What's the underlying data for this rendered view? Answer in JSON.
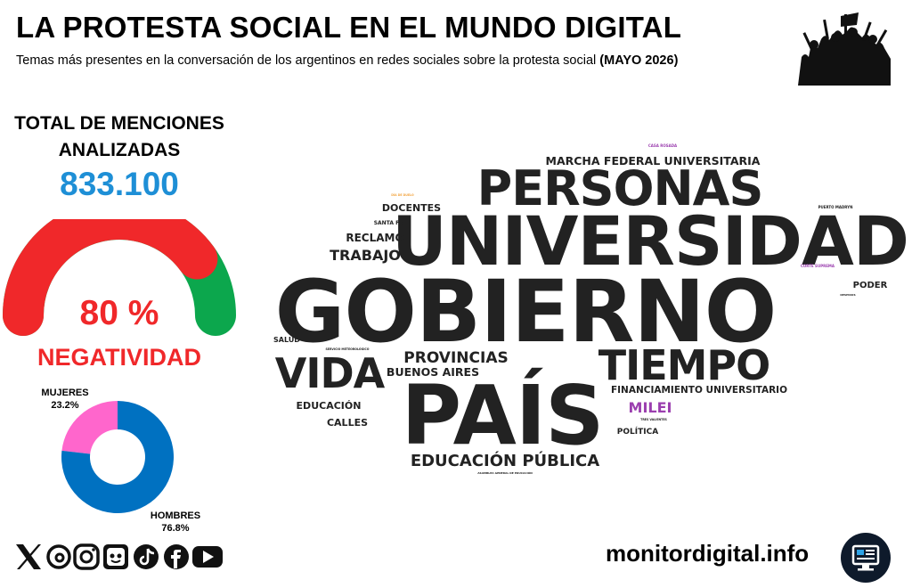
{
  "header": {
    "title": "LA PROTESTA SOCIAL EN EL MUNDO DIGITAL",
    "subtitle": "Temas más presentes en la conversación de los argentinos en redes sociales sobre la protesta social",
    "subtitle_bold": "(MAYO 2026)"
  },
  "summary": {
    "total_label": "TOTAL DE MENCIONES ANALIZADAS",
    "total_value": "833.100",
    "negativity_text": "80 %",
    "negativity_label": "NEGATIVIDAD"
  },
  "footer": {
    "site": "monitordigital.info",
    "social_icons": [
      "x-icon",
      "threads-icon",
      "instagram-icon",
      "ai-bot-icon",
      "tiktok-icon",
      "facebook-icon",
      "youtube-icon"
    ]
  },
  "colors": {
    "negative": "#F0282A",
    "positive": "#0CA74D",
    "total": "#1E8FD6",
    "women": "#FF66CC",
    "men": "#0071C1",
    "purple": "#9B3FAF",
    "dark": "#222222"
  },
  "chart_data": [
    {
      "type": "gauge",
      "title": "",
      "value": 80,
      "max": 100,
      "unit": "%",
      "label": "NEGATIVIDAD"
    },
    {
      "type": "pie",
      "donut": true,
      "title": "",
      "series": [
        {
          "name": "MUJERES",
          "value": 23.2,
          "label": "23.2%"
        },
        {
          "name": "HOMBRES",
          "value": 76.8,
          "label": "76.8%"
        }
      ]
    },
    {
      "type": "wordcloud",
      "title": "",
      "words": [
        {
          "text": "GOBIERNO",
          "weight": 100
        },
        {
          "text": "UNIVERSIDAD",
          "weight": 78
        },
        {
          "text": "PAÍS",
          "weight": 76
        },
        {
          "text": "PERSONAS",
          "weight": 55
        },
        {
          "text": "TIEMPO",
          "weight": 48
        },
        {
          "text": "VIDA",
          "weight": 48
        },
        {
          "text": "EDUCACIÓN PÚBLICA",
          "weight": 19
        },
        {
          "text": "PROVINCIAS",
          "weight": 17
        },
        {
          "text": "TRABAJO",
          "weight": 17
        },
        {
          "text": "MILEI",
          "weight": 16
        },
        {
          "text": "MARCHA FEDERAL UNIVERSITARIA",
          "weight": 13
        },
        {
          "text": "BUENOS AIRES",
          "weight": 13
        },
        {
          "text": "RECLAMO",
          "weight": 12
        },
        {
          "text": "DOCENTES",
          "weight": 11
        },
        {
          "text": "EDUCACIÓN",
          "weight": 11
        },
        {
          "text": "CALLES",
          "weight": 11
        },
        {
          "text": "FINANCIAMIENTO UNIVERSITARIO",
          "weight": 11
        },
        {
          "text": "PODER",
          "weight": 10
        },
        {
          "text": "POLÍTICA",
          "weight": 9
        },
        {
          "text": "SALUD",
          "weight": 8
        },
        {
          "text": "SANTA FE",
          "weight": 6
        },
        {
          "text": "PUERTO MADRYN",
          "weight": 4
        },
        {
          "text": "CASA ROSADA",
          "weight": 4
        },
        {
          "text": "CORTE SUPREMA",
          "weight": 4
        },
        {
          "text": "SERVICIO METEOROLÓGICO",
          "weight": 3
        },
        {
          "text": "TRES VALIENTES",
          "weight": 3
        },
        {
          "text": "DÍA DE DUELO",
          "weight": 3
        },
        {
          "text": "ASAMBLEA GENERAL DE EDUCACIÓN",
          "weight": 3
        },
        {
          "text": "DESPIDOS",
          "weight": 3
        }
      ]
    }
  ]
}
